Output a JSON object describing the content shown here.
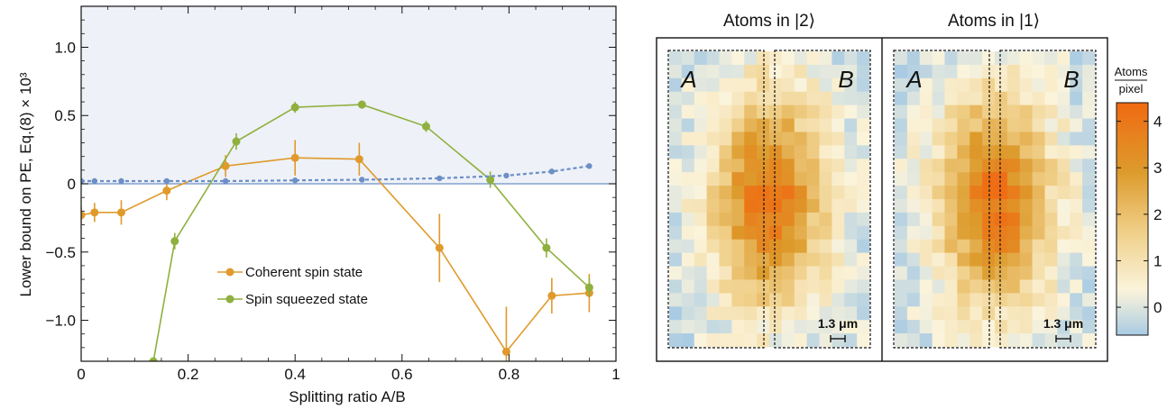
{
  "chart_data": [
    {
      "type": "line",
      "xlabel": "Splitting ratio A/B",
      "ylabel": "Lower bound on PE,  Eq.(8) × 10³",
      "xlim": [
        0,
        1
      ],
      "ylim": [
        -1.3,
        1.3
      ],
      "x_ticks": [
        "0",
        "0.2",
        "0.4",
        "0.6",
        "0.8",
        "1"
      ],
      "x_tick_values": [
        0,
        0.2,
        0.4,
        0.6,
        0.8,
        1.0
      ],
      "y_ticks": [
        "−1.0",
        "−0.5",
        "0",
        "0.5",
        "1.0"
      ],
      "y_tick_values": [
        -1.0,
        -0.5,
        0,
        0.5,
        1.0
      ],
      "shaded_region": {
        "from": 0,
        "to": 1.3,
        "color": "#eef1f7"
      },
      "zero_line_color": "#6c8fc6",
      "legend_position": "center-left",
      "series": [
        {
          "name": "Coherent spin state",
          "color": "#e09a2c",
          "style": "solid",
          "points": [
            {
              "x": 0.0,
              "y": -0.23,
              "err": 0.06
            },
            {
              "x": 0.025,
              "y": -0.21,
              "err": 0.07
            },
            {
              "x": 0.075,
              "y": -0.21,
              "err": 0.09
            },
            {
              "x": 0.16,
              "y": -0.05,
              "err": 0.07
            },
            {
              "x": 0.27,
              "y": 0.13,
              "err": 0.08
            },
            {
              "x": 0.4,
              "y": 0.19,
              "err": 0.13
            },
            {
              "x": 0.52,
              "y": 0.18,
              "err": 0.12
            },
            {
              "x": 0.67,
              "y": -0.47,
              "err": 0.25
            },
            {
              "x": 0.795,
              "y": -1.23,
              "err": 0.33
            },
            {
              "x": 0.88,
              "y": -0.82,
              "err": 0.13
            },
            {
              "x": 0.95,
              "y": -0.8,
              "err": 0.14
            }
          ]
        },
        {
          "name": "Spin squeezed state",
          "color": "#8fb03e",
          "style": "solid",
          "points": [
            {
              "x": 0.135,
              "y": -1.3,
              "err": 0.0
            },
            {
              "x": 0.175,
              "y": -0.42,
              "err": 0.06
            },
            {
              "x": 0.29,
              "y": 0.31,
              "err": 0.06
            },
            {
              "x": 0.4,
              "y": 0.56,
              "err": 0.04
            },
            {
              "x": 0.525,
              "y": 0.58,
              "err": 0.03
            },
            {
              "x": 0.645,
              "y": 0.42,
              "err": 0.04
            },
            {
              "x": 0.765,
              "y": 0.03,
              "err": 0.06
            },
            {
              "x": 0.87,
              "y": -0.47,
              "err": 0.07
            },
            {
              "x": 0.95,
              "y": -0.76,
              "err": 0.07
            }
          ]
        },
        {
          "name": "",
          "color": "#6c8fc6",
          "style": "dashed",
          "points": [
            {
              "x": 0.0,
              "y": 0.02
            },
            {
              "x": 0.025,
              "y": 0.02
            },
            {
              "x": 0.075,
              "y": 0.02
            },
            {
              "x": 0.16,
              "y": 0.02
            },
            {
              "x": 0.27,
              "y": 0.02
            },
            {
              "x": 0.4,
              "y": 0.025
            },
            {
              "x": 0.525,
              "y": 0.03
            },
            {
              "x": 0.67,
              "y": 0.04
            },
            {
              "x": 0.795,
              "y": 0.06
            },
            {
              "x": 0.88,
              "y": 0.09
            },
            {
              "x": 0.95,
              "y": 0.13
            }
          ]
        }
      ]
    },
    {
      "type": "heatmap",
      "panels": [
        {
          "title": "Atoms in |2⟩",
          "region_a": "A",
          "region_b": "B",
          "scale_label": "1.3 μm"
        },
        {
          "title": "Atoms in |1⟩",
          "region_a": "A",
          "region_b": "B",
          "scale_label": "1.3 μm"
        }
      ],
      "colorbar": {
        "title_top": "Atoms",
        "title_bottom": "pixel",
        "ticks": [
          "0",
          "1",
          "2",
          "3",
          "4"
        ],
        "tick_values": [
          0,
          1,
          2,
          3,
          4
        ],
        "range": [
          -0.6,
          4.4
        ],
        "colors": [
          "#a9cbe3",
          "#fbf4dc",
          "#f0d08a",
          "#dd9b2c",
          "#f06a12"
        ]
      }
    }
  ]
}
